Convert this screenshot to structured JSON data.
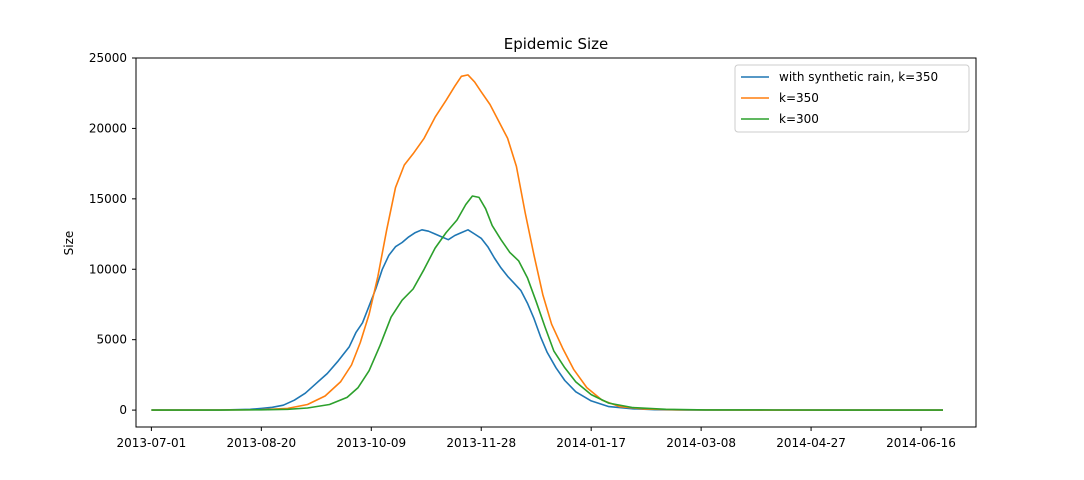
{
  "chart_data": {
    "type": "line",
    "title": "Epidemic Size",
    "xlabel": "",
    "ylabel": "Size",
    "xlim": [
      "2013-06-24",
      "2014-07-11"
    ],
    "ylim": [
      -1200,
      25000
    ],
    "x_ticks": [
      "2013-07-01",
      "2013-08-20",
      "2013-10-09",
      "2013-11-28",
      "2014-01-17",
      "2014-03-08",
      "2014-04-27",
      "2014-06-16"
    ],
    "y_ticks": [
      0,
      5000,
      10000,
      15000,
      20000,
      25000
    ],
    "legend_position": "top-right",
    "series": [
      {
        "name": "with synthetic rain, k=350",
        "color": "#1f77b4",
        "x": [
          "2013-07-01",
          "2013-08-01",
          "2013-08-15",
          "2013-08-20",
          "2013-08-25",
          "2013-08-30",
          "2013-09-04",
          "2013-09-09",
          "2013-09-14",
          "2013-09-19",
          "2013-09-24",
          "2013-09-29",
          "2013-10-02",
          "2013-10-05",
          "2013-10-08",
          "2013-10-11",
          "2013-10-14",
          "2013-10-17",
          "2013-10-20",
          "2013-10-23",
          "2013-10-26",
          "2013-10-29",
          "2013-11-01",
          "2013-11-04",
          "2013-11-07",
          "2013-11-10",
          "2013-11-13",
          "2013-11-16",
          "2013-11-19",
          "2013-11-22",
          "2013-11-25",
          "2013-11-28",
          "2013-12-01",
          "2013-12-04",
          "2013-12-07",
          "2013-12-10",
          "2013-12-13",
          "2013-12-16",
          "2013-12-19",
          "2013-12-22",
          "2013-12-25",
          "2013-12-28",
          "2014-01-01",
          "2014-01-05",
          "2014-01-10",
          "2014-01-17",
          "2014-01-25",
          "2014-02-05",
          "2014-02-15",
          "2014-03-01",
          "2014-04-01",
          "2014-05-01",
          "2014-06-01",
          "2014-06-26"
        ],
        "y": [
          0,
          10,
          60,
          120,
          200,
          350,
          700,
          1200,
          1900,
          2600,
          3500,
          4500,
          5500,
          6200,
          7400,
          8600,
          10000,
          11000,
          11600,
          11900,
          12300,
          12600,
          12800,
          12700,
          12500,
          12300,
          12100,
          12400,
          12600,
          12800,
          12500,
          12200,
          11600,
          10800,
          10100,
          9500,
          9000,
          8500,
          7600,
          6500,
          5200,
          4100,
          3000,
          2100,
          1300,
          650,
          250,
          90,
          30,
          10,
          5,
          0,
          0,
          0
        ]
      },
      {
        "name": "k=350",
        "color": "#ff7f0e",
        "x": [
          "2013-07-01",
          "2013-08-01",
          "2013-08-20",
          "2013-09-01",
          "2013-09-10",
          "2013-09-18",
          "2013-09-25",
          "2013-09-30",
          "2013-10-04",
          "2013-10-08",
          "2013-10-12",
          "2013-10-16",
          "2013-10-20",
          "2013-10-24",
          "2013-10-28",
          "2013-11-02",
          "2013-11-07",
          "2013-11-12",
          "2013-11-16",
          "2013-11-19",
          "2013-11-22",
          "2013-11-25",
          "2013-11-28",
          "2013-12-02",
          "2013-12-06",
          "2013-12-10",
          "2013-12-14",
          "2013-12-18",
          "2013-12-22",
          "2013-12-26",
          "2013-12-30",
          "2014-01-04",
          "2014-01-09",
          "2014-01-15",
          "2014-01-22",
          "2014-01-30",
          "2014-02-10",
          "2014-02-25",
          "2014-03-15",
          "2014-04-15",
          "2014-05-15",
          "2014-06-26"
        ],
        "y": [
          0,
          5,
          30,
          120,
          400,
          1000,
          2000,
          3200,
          4800,
          6800,
          9500,
          12800,
          15800,
          17400,
          18200,
          19300,
          20800,
          22000,
          23000,
          23700,
          23800,
          23300,
          22600,
          21700,
          20500,
          19300,
          17300,
          14000,
          11000,
          8200,
          6100,
          4400,
          2900,
          1600,
          700,
          250,
          80,
          20,
          5,
          0,
          0,
          0
        ]
      },
      {
        "name": "k=300",
        "color": "#2ca02c",
        "x": [
          "2013-07-01",
          "2013-08-01",
          "2013-08-20",
          "2013-09-01",
          "2013-09-10",
          "2013-09-20",
          "2013-09-28",
          "2013-10-03",
          "2013-10-08",
          "2013-10-13",
          "2013-10-18",
          "2013-10-23",
          "2013-10-28",
          "2013-11-02",
          "2013-11-07",
          "2013-11-12",
          "2013-11-17",
          "2013-11-21",
          "2013-11-24",
          "2013-11-27",
          "2013-11-30",
          "2013-12-03",
          "2013-12-07",
          "2013-12-11",
          "2013-12-15",
          "2013-12-19",
          "2013-12-23",
          "2013-12-27",
          "2013-12-31",
          "2014-01-05",
          "2014-01-10",
          "2014-01-17",
          "2014-01-25",
          "2014-02-05",
          "2014-02-20",
          "2014-03-10",
          "2014-04-10",
          "2014-05-10",
          "2014-06-26"
        ],
        "y": [
          0,
          3,
          20,
          60,
          150,
          400,
          900,
          1600,
          2800,
          4600,
          6600,
          7800,
          8600,
          10000,
          11500,
          12600,
          13500,
          14600,
          15200,
          15100,
          14300,
          13100,
          12100,
          11200,
          10600,
          9400,
          7700,
          5900,
          4200,
          3000,
          2000,
          1100,
          500,
          180,
          60,
          15,
          5,
          0,
          0
        ]
      }
    ]
  }
}
